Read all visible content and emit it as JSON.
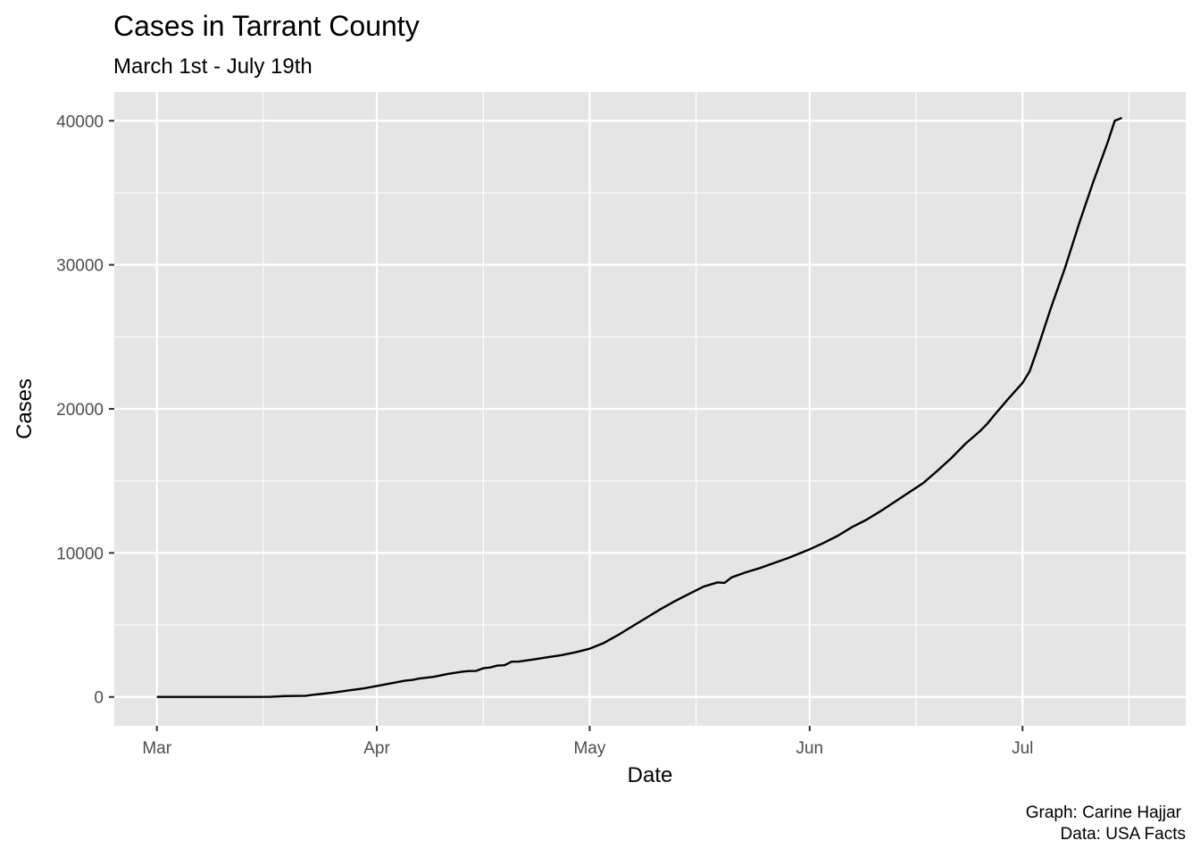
{
  "chart_data": {
    "type": "line",
    "title": "Cases in Tarrant County",
    "subtitle": "March 1st - July 19th",
    "xlabel": "Date",
    "ylabel": "Cases",
    "caption": [
      "Graph: Carine Hajjar",
      "Data: USA Facts"
    ],
    "xlim": [
      "2020-02-24",
      "2020-07-24"
    ],
    "ylim": [
      -2000,
      42000
    ],
    "x_ticks": [
      {
        "date": "2020-03-01",
        "label": "Mar"
      },
      {
        "date": "2020-04-01",
        "label": "Apr"
      },
      {
        "date": "2020-05-01",
        "label": "May"
      },
      {
        "date": "2020-06-01",
        "label": "Jun"
      },
      {
        "date": "2020-07-01",
        "label": "Jul"
      }
    ],
    "x_minor_ticks": [
      "2020-03-16",
      "2020-04-16",
      "2020-05-16",
      "2020-06-16",
      "2020-07-16"
    ],
    "y_ticks": [
      0,
      10000,
      20000,
      30000,
      40000
    ],
    "y_minor_ticks": [
      5000,
      15000,
      25000,
      35000
    ],
    "grid": true,
    "line_color": "#000000",
    "panel_color": "#e5e5e5",
    "grid_color": "#ffffff",
    "series": [
      {
        "points": [
          [
            "2020-03-01",
            0
          ],
          [
            "2020-03-08",
            0
          ],
          [
            "2020-03-14",
            5
          ],
          [
            "2020-03-17",
            10
          ],
          [
            "2020-03-19",
            60
          ],
          [
            "2020-03-22",
            80
          ],
          [
            "2020-03-23",
            150
          ],
          [
            "2020-03-24",
            200
          ],
          [
            "2020-03-26",
            310
          ],
          [
            "2020-03-28",
            450
          ],
          [
            "2020-03-30",
            580
          ],
          [
            "2020-04-01",
            760
          ],
          [
            "2020-04-03",
            950
          ],
          [
            "2020-04-05",
            1130
          ],
          [
            "2020-04-06",
            1180
          ],
          [
            "2020-04-07",
            1280
          ],
          [
            "2020-04-09",
            1400
          ],
          [
            "2020-04-11",
            1600
          ],
          [
            "2020-04-13",
            1750
          ],
          [
            "2020-04-14",
            1800
          ],
          [
            "2020-04-15",
            1810
          ],
          [
            "2020-04-16",
            1990
          ],
          [
            "2020-04-17",
            2050
          ],
          [
            "2020-04-18",
            2180
          ],
          [
            "2020-04-19",
            2200
          ],
          [
            "2020-04-20",
            2450
          ],
          [
            "2020-04-21",
            2460
          ],
          [
            "2020-04-23",
            2600
          ],
          [
            "2020-04-25",
            2750
          ],
          [
            "2020-04-27",
            2900
          ],
          [
            "2020-04-29",
            3100
          ],
          [
            "2020-05-01",
            3350
          ],
          [
            "2020-05-03",
            3750
          ],
          [
            "2020-05-05",
            4300
          ],
          [
            "2020-05-07",
            4900
          ],
          [
            "2020-05-09",
            5500
          ],
          [
            "2020-05-11",
            6100
          ],
          [
            "2020-05-13",
            6650
          ],
          [
            "2020-05-15",
            7150
          ],
          [
            "2020-05-17",
            7650
          ],
          [
            "2020-05-19",
            7950
          ],
          [
            "2020-05-20",
            7920
          ],
          [
            "2020-05-21",
            8300
          ],
          [
            "2020-05-23",
            8650
          ],
          [
            "2020-05-25",
            8950
          ],
          [
            "2020-05-27",
            9300
          ],
          [
            "2020-05-29",
            9650
          ],
          [
            "2020-06-01",
            10250
          ],
          [
            "2020-06-03",
            10700
          ],
          [
            "2020-06-05",
            11200
          ],
          [
            "2020-06-07",
            11800
          ],
          [
            "2020-06-09",
            12300
          ],
          [
            "2020-06-11",
            12900
          ],
          [
            "2020-06-13",
            13550
          ],
          [
            "2020-06-15",
            14200
          ],
          [
            "2020-06-17",
            14850
          ],
          [
            "2020-06-19",
            15700
          ],
          [
            "2020-06-21",
            16600
          ],
          [
            "2020-06-23",
            17600
          ],
          [
            "2020-06-25",
            18450
          ],
          [
            "2020-06-26",
            18950
          ],
          [
            "2020-06-27",
            19550
          ],
          [
            "2020-06-29",
            20700
          ],
          [
            "2020-07-01",
            21800
          ],
          [
            "2020-07-02",
            22600
          ],
          [
            "2020-07-03",
            24000
          ],
          [
            "2020-07-05",
            27000
          ],
          [
            "2020-07-07",
            29800
          ],
          [
            "2020-07-09",
            32900
          ],
          [
            "2020-07-11",
            35800
          ],
          [
            "2020-07-13",
            38500
          ],
          [
            "2020-07-14",
            40000
          ],
          [
            "2020-07-15",
            40200
          ]
        ]
      }
    ]
  }
}
